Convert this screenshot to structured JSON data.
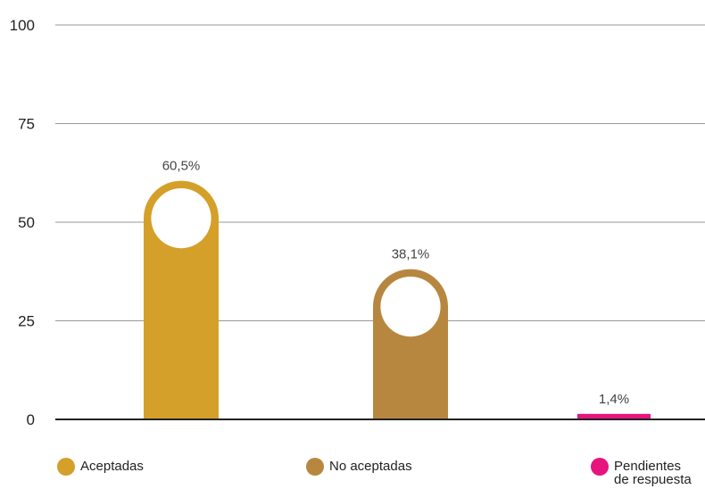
{
  "chart_data": {
    "type": "bar",
    "categories": [
      "Aceptadas",
      "No aceptadas",
      "Pendientes de respuesta"
    ],
    "values": [
      60.5,
      38.1,
      1.4
    ],
    "data_labels": [
      "60,5%",
      "38,1%",
      "1,4%"
    ],
    "colors": [
      "#D4A02A",
      "#B8873F",
      "#E6147E"
    ],
    "ylim": [
      0,
      100
    ],
    "yticks": [
      0,
      25,
      50,
      75,
      100
    ],
    "ytick_labels": [
      "0",
      "25",
      "50",
      "75",
      "100"
    ],
    "grid": true,
    "legend_position": "bottom",
    "title": "",
    "xlabel": "",
    "ylabel": ""
  },
  "legend": [
    {
      "label": "Aceptadas",
      "color": "#D4A02A"
    },
    {
      "label": "No aceptadas",
      "color": "#B8873F"
    },
    {
      "label": "Pendientes de respuesta",
      "color": "#E6147E"
    }
  ]
}
